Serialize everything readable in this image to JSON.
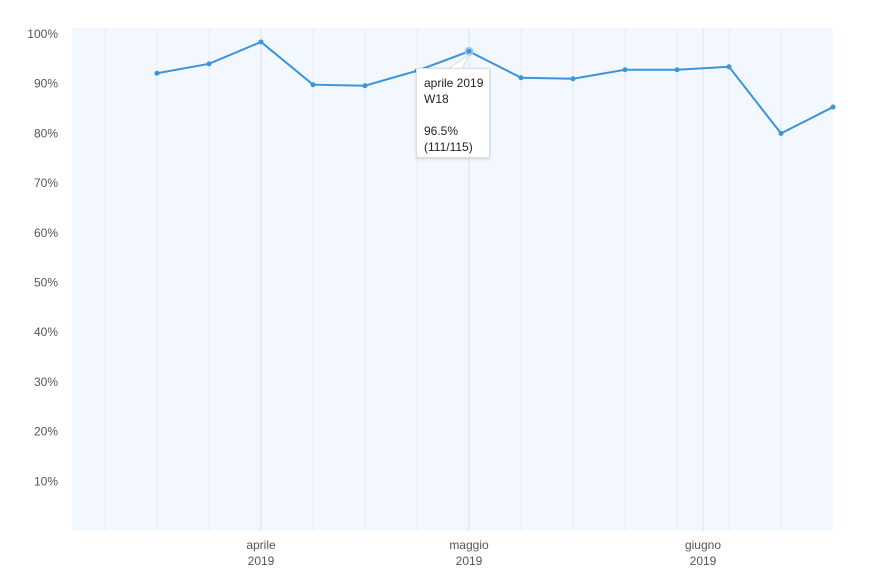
{
  "chart_data": {
    "type": "line",
    "title": "",
    "xlabel": "",
    "ylabel": "",
    "ylim": [
      0,
      100
    ],
    "y_ticks": [
      "10%",
      "20%",
      "30%",
      "40%",
      "50%",
      "60%",
      "70%",
      "80%",
      "90%",
      "100%"
    ],
    "x_ticks": [
      {
        "label": "aprile",
        "year": "2019",
        "index": 2
      },
      {
        "label": "maggio",
        "year": "2019",
        "index": 6
      },
      {
        "label": "giugno",
        "year": "2019",
        "index": 10.5
      }
    ],
    "series": [
      {
        "name": "percent",
        "color": "#3a95dd",
        "values": [
          92.1,
          94.0,
          98.4,
          89.8,
          89.6,
          92.6,
          96.5,
          91.2,
          91.0,
          92.8,
          92.8,
          93.4,
          80.0,
          85.3
        ]
      }
    ],
    "grid": true,
    "background": "#f2f8fe"
  },
  "tooltip": {
    "line1": "aprile 2019",
    "line2": "W18",
    "value": "96.5%",
    "ratio": "(111/115)",
    "index": 6
  }
}
